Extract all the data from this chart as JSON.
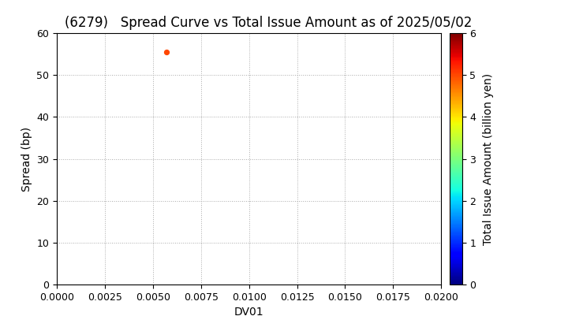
{
  "title": "(6279)   Spread Curve vs Total Issue Amount as of 2025/05/02",
  "xlabel": "DV01",
  "ylabel": "Spread (bp)",
  "colorbar_label": "Total Issue Amount (billion yen)",
  "xlim": [
    0.0,
    0.02
  ],
  "ylim": [
    0,
    60
  ],
  "xticks": [
    0.0,
    0.0025,
    0.005,
    0.0075,
    0.01,
    0.0125,
    0.015,
    0.0175,
    0.02
  ],
  "yticks": [
    0,
    10,
    20,
    30,
    40,
    50,
    60
  ],
  "colorbar_ticks": [
    0,
    1,
    2,
    3,
    4,
    5,
    6
  ],
  "colorbar_min": 0,
  "colorbar_max": 6,
  "scatter_x": [
    0.0057
  ],
  "scatter_y": [
    55.5
  ],
  "scatter_color_value": [
    5.0
  ],
  "scatter_size": 18,
  "background_color": "#ffffff",
  "grid_color": "#aaaaaa",
  "grid_linestyle": "dotted",
  "title_fontsize": 12,
  "axis_fontsize": 10,
  "tick_fontsize": 9,
  "colorbar_fontsize": 9
}
